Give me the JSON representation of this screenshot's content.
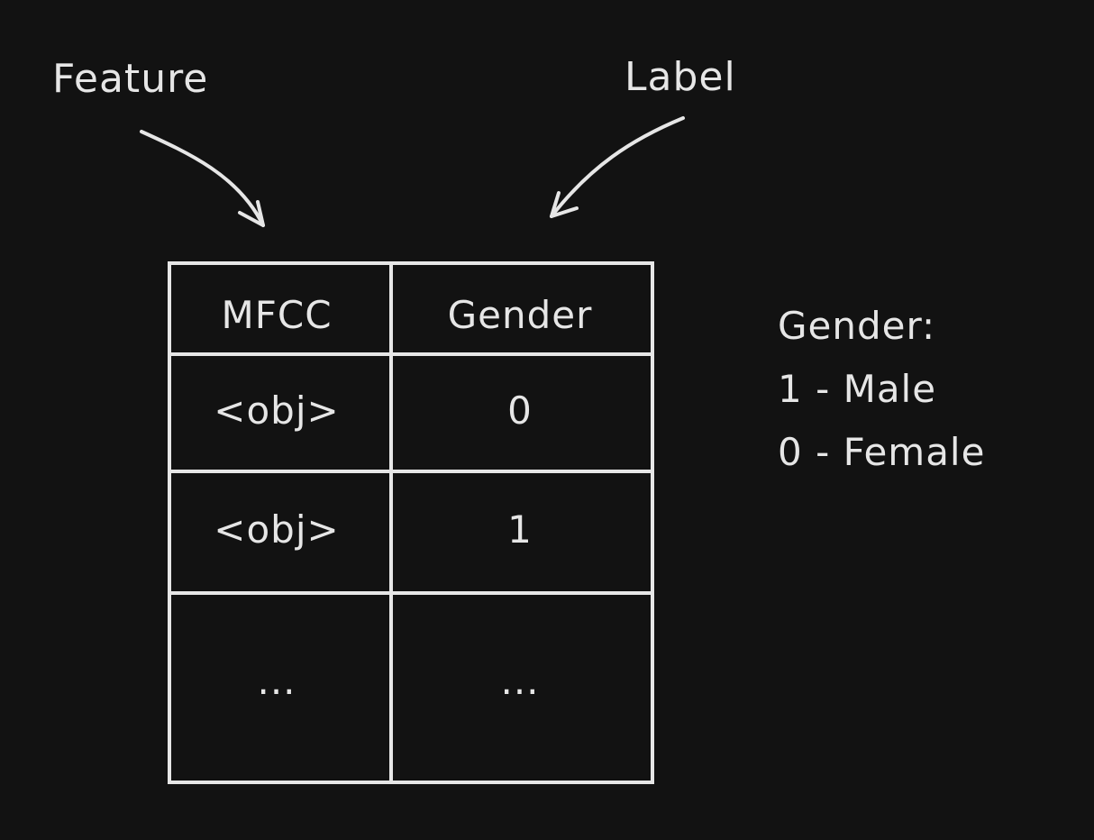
{
  "annotations": {
    "feature_label": "Feature",
    "label_label": "Label"
  },
  "table": {
    "headers": [
      "MFCC",
      "Gender"
    ],
    "rows": [
      [
        "<obj>",
        "0"
      ],
      [
        "<obj>",
        "1"
      ],
      [
        "...",
        "..."
      ]
    ]
  },
  "legend": {
    "title": "Gender:",
    "items": [
      "1 - Male",
      "0 - Female"
    ]
  },
  "colors": {
    "background": "#121212",
    "stroke": "#e6e6e6"
  }
}
